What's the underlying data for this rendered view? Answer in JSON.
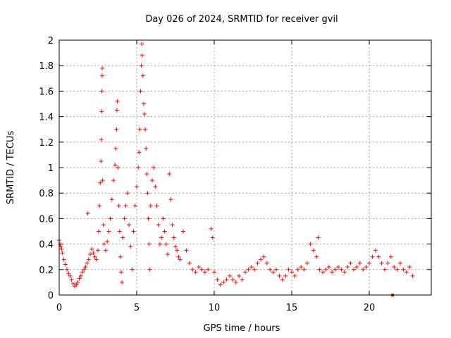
{
  "colors": {
    "series": "#ff0000",
    "grid": "#a0a0a0",
    "axis": "#000000"
  },
  "chart_data": {
    "type": "scatter",
    "title": "Day 026 of 2024, SRMTID for receiver gvil",
    "xlabel": "GPS time / hours",
    "ylabel": "SRMTID / TECUs",
    "xlim": [
      0,
      24
    ],
    "ylim": [
      0,
      2
    ],
    "xticks": [
      0,
      5,
      10,
      15,
      20
    ],
    "yticks": [
      0,
      0.2,
      0.4,
      0.6,
      0.8,
      1,
      1.2,
      1.4,
      1.6,
      1.8,
      2
    ],
    "grid": true,
    "marker": "plus",
    "series": [
      {
        "name": "SRMTID",
        "points": [
          [
            0.0,
            0.43
          ],
          [
            0.05,
            0.4
          ],
          [
            0.1,
            0.38
          ],
          [
            0.15,
            0.36
          ],
          [
            0.2,
            0.33
          ],
          [
            0.3,
            0.28
          ],
          [
            0.4,
            0.24
          ],
          [
            0.5,
            0.2
          ],
          [
            0.6,
            0.17
          ],
          [
            0.7,
            0.15
          ],
          [
            0.8,
            0.12
          ],
          [
            0.9,
            0.09
          ],
          [
            1.0,
            0.07
          ],
          [
            1.1,
            0.08
          ],
          [
            1.2,
            0.1
          ],
          [
            1.3,
            0.13
          ],
          [
            1.4,
            0.15
          ],
          [
            1.5,
            0.18
          ],
          [
            1.6,
            0.2
          ],
          [
            1.7,
            0.22
          ],
          [
            1.8,
            0.25
          ],
          [
            1.85,
            0.64
          ],
          [
            1.9,
            0.28
          ],
          [
            2.0,
            0.32
          ],
          [
            2.1,
            0.36
          ],
          [
            2.2,
            0.33
          ],
          [
            2.3,
            0.3
          ],
          [
            2.4,
            0.28
          ],
          [
            2.5,
            0.35
          ],
          [
            2.55,
            0.5
          ],
          [
            2.6,
            0.7
          ],
          [
            2.65,
            0.88
          ],
          [
            2.7,
            1.05
          ],
          [
            2.72,
            1.22
          ],
          [
            2.74,
            1.44
          ],
          [
            2.75,
            1.6
          ],
          [
            2.77,
            1.72
          ],
          [
            2.78,
            1.78
          ],
          [
            2.8,
            0.9
          ],
          [
            2.85,
            0.55
          ],
          [
            2.9,
            0.4
          ],
          [
            3.0,
            0.35
          ],
          [
            3.1,
            0.42
          ],
          [
            3.2,
            0.5
          ],
          [
            3.3,
            0.6
          ],
          [
            3.4,
            0.75
          ],
          [
            3.5,
            0.9
          ],
          [
            3.6,
            1.02
          ],
          [
            3.65,
            1.15
          ],
          [
            3.7,
            1.3
          ],
          [
            3.72,
            1.45
          ],
          [
            3.75,
            1.52
          ],
          [
            3.8,
            1.0
          ],
          [
            3.85,
            0.7
          ],
          [
            3.9,
            0.5
          ],
          [
            3.95,
            0.3
          ],
          [
            4.0,
            0.18
          ],
          [
            4.05,
            0.1
          ],
          [
            4.1,
            0.45
          ],
          [
            4.2,
            0.6
          ],
          [
            4.3,
            0.7
          ],
          [
            4.4,
            0.8
          ],
          [
            4.5,
            0.55
          ],
          [
            4.6,
            0.38
          ],
          [
            4.7,
            0.2
          ],
          [
            4.8,
            0.5
          ],
          [
            4.9,
            0.7
          ],
          [
            5.0,
            0.85
          ],
          [
            5.1,
            1.0
          ],
          [
            5.15,
            1.12
          ],
          [
            5.2,
            1.3
          ],
          [
            5.25,
            1.6
          ],
          [
            5.3,
            1.8
          ],
          [
            5.33,
            1.97
          ],
          [
            5.35,
            1.88
          ],
          [
            5.4,
            1.72
          ],
          [
            5.45,
            1.5
          ],
          [
            5.5,
            1.42
          ],
          [
            5.55,
            1.3
          ],
          [
            5.6,
            1.15
          ],
          [
            5.65,
            0.95
          ],
          [
            5.7,
            0.8
          ],
          [
            5.75,
            0.6
          ],
          [
            5.8,
            0.4
          ],
          [
            5.85,
            0.2
          ],
          [
            5.9,
            0.7
          ],
          [
            6.0,
            0.9
          ],
          [
            6.1,
            1.0
          ],
          [
            6.2,
            0.85
          ],
          [
            6.3,
            0.7
          ],
          [
            6.4,
            0.55
          ],
          [
            6.5,
            0.4
          ],
          [
            6.6,
            0.45
          ],
          [
            6.7,
            0.6
          ],
          [
            6.8,
            0.5
          ],
          [
            6.9,
            0.4
          ],
          [
            7.0,
            0.32
          ],
          [
            7.1,
            0.95
          ],
          [
            7.2,
            0.75
          ],
          [
            7.3,
            0.55
          ],
          [
            7.4,
            0.45
          ],
          [
            7.5,
            0.38
          ],
          [
            7.6,
            0.35
          ],
          [
            7.7,
            0.3
          ],
          [
            7.8,
            0.28
          ],
          [
            8.0,
            0.5
          ],
          [
            8.2,
            0.35
          ],
          [
            8.4,
            0.25
          ],
          [
            8.6,
            0.2
          ],
          [
            8.8,
            0.18
          ],
          [
            9.0,
            0.22
          ],
          [
            9.2,
            0.2
          ],
          [
            9.4,
            0.18
          ],
          [
            9.6,
            0.2
          ],
          [
            9.8,
            0.52
          ],
          [
            9.9,
            0.45
          ],
          [
            10.0,
            0.18
          ],
          [
            10.2,
            0.12
          ],
          [
            10.4,
            0.08
          ],
          [
            10.6,
            0.1
          ],
          [
            10.8,
            0.12
          ],
          [
            11.0,
            0.15
          ],
          [
            11.2,
            0.12
          ],
          [
            11.4,
            0.1
          ],
          [
            11.6,
            0.15
          ],
          [
            11.8,
            0.12
          ],
          [
            12.0,
            0.18
          ],
          [
            12.2,
            0.2
          ],
          [
            12.4,
            0.22
          ],
          [
            12.6,
            0.2
          ],
          [
            12.8,
            0.25
          ],
          [
            13.0,
            0.28
          ],
          [
            13.2,
            0.3
          ],
          [
            13.4,
            0.25
          ],
          [
            13.6,
            0.2
          ],
          [
            13.8,
            0.18
          ],
          [
            14.0,
            0.2
          ],
          [
            14.2,
            0.15
          ],
          [
            14.4,
            0.12
          ],
          [
            14.6,
            0.15
          ],
          [
            14.8,
            0.2
          ],
          [
            15.0,
            0.18
          ],
          [
            15.2,
            0.15
          ],
          [
            15.4,
            0.2
          ],
          [
            15.6,
            0.22
          ],
          [
            15.8,
            0.2
          ],
          [
            16.0,
            0.25
          ],
          [
            16.2,
            0.4
          ],
          [
            16.4,
            0.35
          ],
          [
            16.6,
            0.3
          ],
          [
            16.7,
            0.45
          ],
          [
            16.8,
            0.2
          ],
          [
            17.0,
            0.18
          ],
          [
            17.2,
            0.2
          ],
          [
            17.4,
            0.22
          ],
          [
            17.6,
            0.18
          ],
          [
            17.8,
            0.2
          ],
          [
            18.0,
            0.22
          ],
          [
            18.2,
            0.2
          ],
          [
            18.4,
            0.18
          ],
          [
            18.6,
            0.22
          ],
          [
            18.8,
            0.25
          ],
          [
            19.0,
            0.2
          ],
          [
            19.2,
            0.22
          ],
          [
            19.4,
            0.25
          ],
          [
            19.6,
            0.2
          ],
          [
            19.8,
            0.22
          ],
          [
            20.0,
            0.25
          ],
          [
            20.2,
            0.3
          ],
          [
            20.4,
            0.35
          ],
          [
            20.6,
            0.3
          ],
          [
            20.8,
            0.25
          ],
          [
            21.0,
            0.2
          ],
          [
            21.2,
            0.25
          ],
          [
            21.4,
            0.3
          ],
          [
            21.6,
            0.22
          ],
          [
            21.8,
            0.2
          ],
          [
            22.0,
            0.25
          ],
          [
            22.2,
            0.2
          ],
          [
            22.4,
            0.18
          ],
          [
            22.6,
            0.22
          ],
          [
            22.8,
            0.15
          ]
        ]
      }
    ],
    "outlier_markers": [
      [
        21.5,
        0.0
      ]
    ]
  }
}
